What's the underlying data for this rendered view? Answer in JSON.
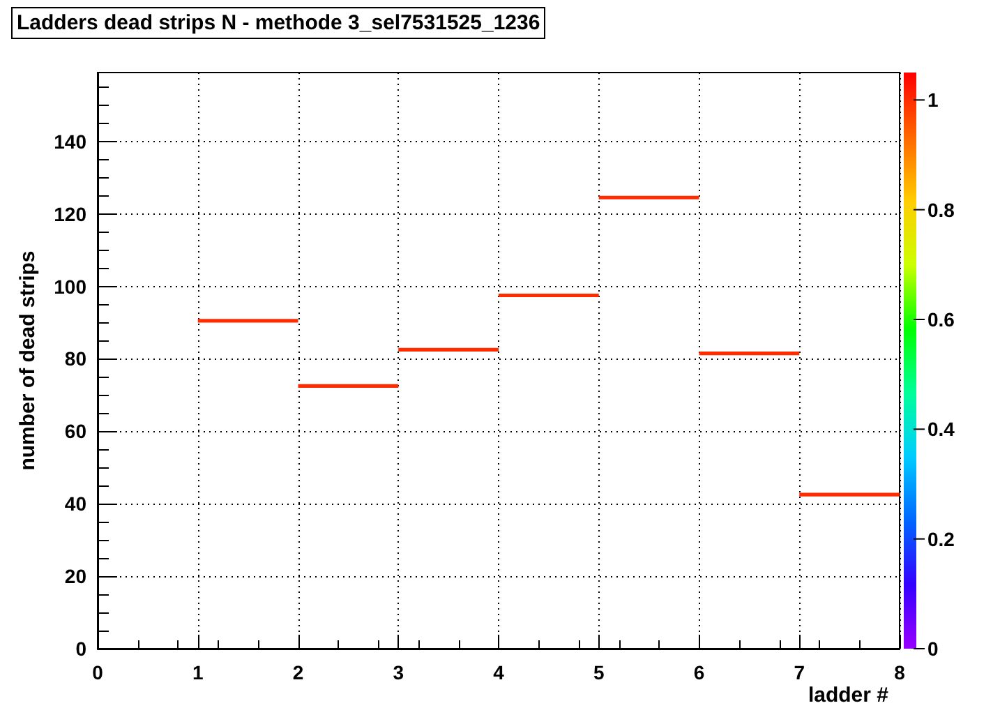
{
  "chart_data": {
    "type": "bar",
    "title": "Ladders dead strips N - methode 3_sel7531525_1236",
    "xlabel": "ladder #",
    "ylabel": "number of dead strips",
    "x": [
      1.5,
      2.5,
      3.5,
      4.5,
      5.5,
      6.5,
      7.5
    ],
    "base": [
      90,
      72,
      82,
      97,
      124,
      81,
      42
    ],
    "values": [
      1,
      1,
      1,
      1,
      1,
      1,
      1
    ],
    "cvalues": [
      1,
      1,
      1,
      1,
      1,
      1,
      1
    ],
    "xlim": [
      0,
      8
    ],
    "xticks": [
      0,
      1,
      2,
      3,
      4,
      5,
      6,
      7,
      8
    ],
    "ylim": [
      0,
      159
    ],
    "yticks": [
      0,
      20,
      40,
      60,
      80,
      100,
      120,
      140
    ],
    "clim": [
      0,
      1.05
    ],
    "cticks": [
      0,
      0.2,
      0.4,
      0.6,
      0.8,
      1
    ],
    "grid": true
  }
}
